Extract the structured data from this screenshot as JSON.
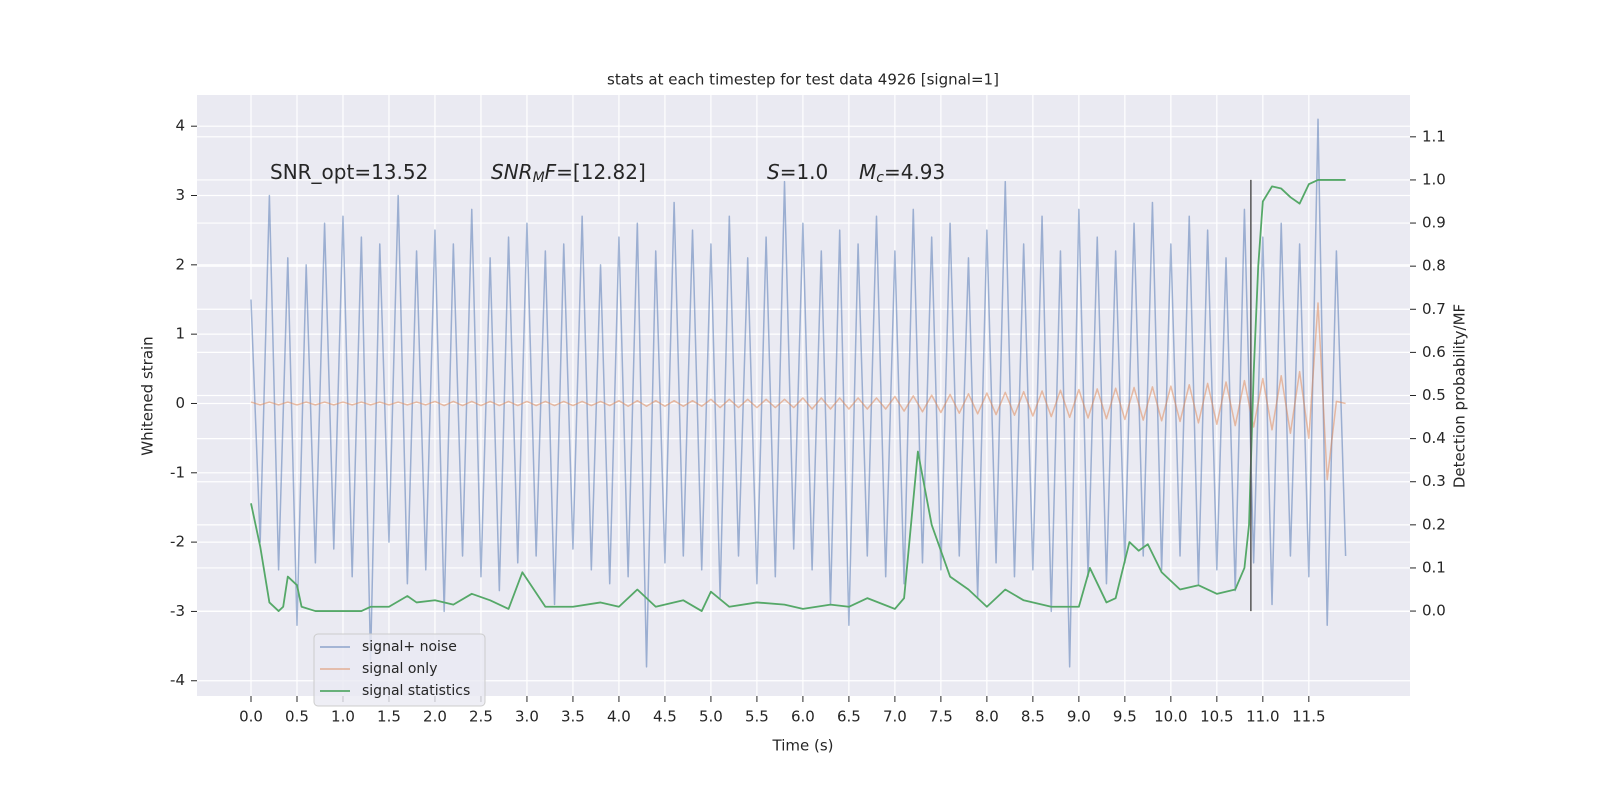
{
  "chart_data": {
    "type": "line",
    "title": "stats at each timestep for test data 4926 [signal=1]",
    "xlabel": "Time (s)",
    "ylabel": "Whitened strain",
    "y2label": "Detection probability/MF",
    "annotations": [
      [
        "SNR_opt=13.52"
      ],
      [
        "SNR",
        "M",
        "F",
        "=[12.82]"
      ],
      [
        "S",
        "=1.0"
      ],
      [
        "M",
        "c",
        "=4.93"
      ]
    ],
    "xlim": [
      -0.587,
      12.6
    ],
    "ylim": [
      -4.22,
      4.45
    ],
    "y2lim": [
      -0.197,
      1.197
    ],
    "xticks": [
      {
        "value": 0,
        "label": "0.0"
      },
      0.5,
      {
        "value": 1,
        "label": "1.0"
      },
      1.5,
      {
        "value": 2,
        "label": "2.0"
      },
      2.5,
      {
        "value": 3,
        "label": "3.0"
      },
      3.5,
      {
        "value": 4,
        "label": "4.0"
      },
      4.5,
      {
        "value": 5,
        "label": "5.0"
      },
      5.5,
      {
        "value": 6,
        "label": "6.0"
      },
      6.5,
      {
        "value": 7,
        "label": "7.0"
      },
      7.5,
      {
        "value": 8,
        "label": "8.0"
      },
      8.5,
      {
        "value": 9,
        "label": "9.0"
      },
      9.5,
      {
        "value": 10,
        "label": "10.0"
      },
      10.5,
      {
        "value": 11,
        "label": "11.0"
      },
      11.5
    ],
    "yticks": [
      -4,
      -3,
      -2,
      -1,
      0,
      1,
      2,
      3,
      4
    ],
    "y2ticks": [
      {
        "value": 0,
        "label": "0.0"
      },
      0.1,
      0.2,
      0.3,
      0.4,
      0.5,
      0.6,
      0.7,
      0.8,
      0.9,
      {
        "value": 1,
        "label": "1.0"
      },
      1.1
    ],
    "grid": true,
    "legend": "lower left",
    "x": [
      0,
      0.1,
      0.2,
      0.3,
      0.4,
      0.5,
      0.6,
      0.7,
      0.8,
      0.9,
      1,
      1.1,
      1.2,
      1.3,
      1.4,
      1.5,
      1.6,
      1.7,
      1.8,
      1.9,
      2,
      2.1,
      2.2,
      2.3,
      2.4,
      2.5,
      2.6,
      2.7,
      2.8,
      2.9,
      3,
      3.1,
      3.2,
      3.3,
      3.4,
      3.5,
      3.6,
      3.7,
      3.8,
      3.9,
      4,
      4.1,
      4.2,
      4.3,
      4.4,
      4.5,
      4.6,
      4.7,
      4.8,
      4.9,
      5,
      5.1,
      5.2,
      5.3,
      5.4,
      5.5,
      5.6,
      5.7,
      5.8,
      5.9,
      6,
      6.1,
      6.2,
      6.3,
      6.4,
      6.5,
      6.6,
      6.7,
      6.8,
      6.9,
      7,
      7.1,
      7.2,
      7.3,
      7.4,
      7.5,
      7.6,
      7.7,
      7.8,
      7.9,
      8,
      8.1,
      8.2,
      8.3,
      8.4,
      8.5,
      8.6,
      8.7,
      8.8,
      8.9,
      9,
      9.1,
      9.2,
      9.3,
      9.4,
      9.5,
      9.6,
      9.7,
      9.8,
      9.9,
      10,
      10.1,
      10.2,
      10.3,
      10.4,
      10.5,
      10.6,
      10.7,
      10.8,
      10.9,
      11,
      11.1,
      11.2,
      11.3,
      11.4,
      11.5,
      11.6,
      11.7,
      11.8,
      11.9
    ],
    "series": [
      {
        "name": "signal+ noise",
        "color": "#4c72b0",
        "values": [
          1.5,
          -2.0,
          3.0,
          -2.4,
          2.1,
          -3.2,
          2.0,
          -2.3,
          2.6,
          -2.1,
          2.7,
          -2.5,
          2.4,
          -3.7,
          2.3,
          -2.0,
          3.0,
          -2.6,
          2.2,
          -2.4,
          2.5,
          -3.0,
          2.3,
          -2.2,
          2.8,
          -2.5,
          2.1,
          -2.7,
          2.4,
          -2.3,
          2.6,
          -2.2,
          2.2,
          -2.9,
          2.3,
          -2.1,
          2.7,
          -2.4,
          2.0,
          -2.6,
          2.4,
          -2.5,
          2.6,
          -3.8,
          2.2,
          -2.3,
          2.9,
          -2.2,
          2.5,
          -2.4,
          2.3,
          -2.8,
          2.7,
          -2.2,
          2.1,
          -2.6,
          2.4,
          -2.5,
          3.2,
          -2.1,
          2.6,
          -2.4,
          2.2,
          -2.9,
          2.5,
          -3.2,
          2.3,
          -2.2,
          2.7,
          -2.5,
          2.2,
          -2.6,
          2.8,
          -2.3,
          2.4,
          -2.4,
          2.6,
          -2.2,
          2.1,
          -2.8,
          2.5,
          -2.3,
          3.2,
          -2.5,
          2.3,
          -2.4,
          2.7,
          -3.0,
          2.2,
          -3.8,
          2.8,
          -2.5,
          2.4,
          -2.6,
          2.2,
          -2.3,
          2.6,
          -2.2,
          2.9,
          -2.4,
          2.3,
          -2.2,
          2.7,
          -2.6,
          2.5,
          -2.4,
          2.1,
          -2.7,
          2.8,
          -2.3,
          2.4,
          -2.9,
          2.6,
          -2.2,
          2.3,
          -2.5,
          4.1,
          -3.2,
          2.2,
          -2.2
        ]
      },
      {
        "name": "signal only",
        "color": "#dd8452",
        "values": [
          0.02,
          -0.02,
          0.02,
          -0.02,
          0.02,
          -0.02,
          0.02,
          -0.02,
          0.02,
          -0.02,
          0.02,
          -0.02,
          0.02,
          -0.02,
          0.02,
          -0.02,
          0.02,
          -0.02,
          0.02,
          -0.02,
          0.03,
          -0.03,
          0.03,
          -0.03,
          0.03,
          -0.03,
          0.03,
          -0.03,
          0.03,
          -0.03,
          0.03,
          -0.03,
          0.03,
          -0.03,
          0.03,
          -0.03,
          0.03,
          -0.03,
          0.03,
          -0.03,
          0.04,
          -0.04,
          0.04,
          -0.04,
          0.04,
          -0.04,
          0.04,
          -0.04,
          0.04,
          -0.04,
          0.06,
          -0.06,
          0.06,
          -0.06,
          0.06,
          -0.06,
          0.06,
          -0.06,
          0.06,
          -0.06,
          0.08,
          -0.08,
          0.08,
          -0.08,
          0.08,
          -0.08,
          0.08,
          -0.08,
          0.08,
          -0.08,
          0.1,
          -0.11,
          0.11,
          -0.12,
          0.12,
          -0.13,
          0.13,
          -0.14,
          0.14,
          -0.15,
          0.15,
          -0.16,
          0.16,
          -0.17,
          0.17,
          -0.18,
          0.18,
          -0.19,
          0.19,
          -0.2,
          0.2,
          -0.21,
          0.21,
          -0.22,
          0.22,
          -0.23,
          0.23,
          -0.24,
          0.24,
          -0.25,
          0.25,
          -0.26,
          0.27,
          -0.28,
          0.29,
          -0.3,
          0.31,
          -0.32,
          0.33,
          -0.34,
          0.36,
          -0.38,
          0.4,
          -0.43,
          0.46,
          -0.5,
          1.45,
          -1.1,
          0.03,
          0
        ]
      },
      {
        "name": "signal statistics",
        "color": "#55a868",
        "axis": "y2",
        "x": [
          0,
          0.1,
          0.2,
          0.3,
          0.35,
          0.4,
          0.5,
          0.55,
          0.7,
          1.0,
          1.2,
          1.3,
          1.5,
          1.7,
          1.8,
          2.0,
          2.2,
          2.4,
          2.6,
          2.8,
          2.95,
          3.2,
          3.5,
          3.8,
          4.0,
          4.2,
          4.4,
          4.7,
          4.9,
          5.0,
          5.2,
          5.5,
          5.8,
          6.0,
          6.3,
          6.5,
          6.7,
          7.0,
          7.1,
          7.25,
          7.4,
          7.6,
          7.8,
          8.0,
          8.2,
          8.4,
          8.7,
          9.0,
          9.12,
          9.3,
          9.4,
          9.55,
          9.65,
          9.75,
          9.9,
          10.1,
          10.3,
          10.5,
          10.7,
          10.8,
          10.85,
          10.9,
          10.95,
          11.0,
          11.1,
          11.2,
          11.3,
          11.4,
          11.5,
          11.6,
          11.7,
          11.9
        ],
        "values": [
          0.25,
          0.15,
          0.02,
          0.0,
          0.01,
          0.08,
          0.06,
          0.01,
          0.0,
          0.0,
          0.0,
          0.01,
          0.01,
          0.035,
          0.02,
          0.025,
          0.015,
          0.04,
          0.025,
          0.005,
          0.09,
          0.01,
          0.01,
          0.02,
          0.01,
          0.05,
          0.01,
          0.025,
          0.0,
          0.045,
          0.01,
          0.02,
          0.015,
          0.005,
          0.015,
          0.01,
          0.03,
          0.005,
          0.03,
          0.37,
          0.2,
          0.08,
          0.05,
          0.01,
          0.05,
          0.025,
          0.01,
          0.01,
          0.1,
          0.02,
          0.03,
          0.16,
          0.14,
          0.155,
          0.09,
          0.05,
          0.06,
          0.04,
          0.05,
          0.1,
          0.2,
          0.55,
          0.8,
          0.95,
          0.985,
          0.98,
          0.96,
          0.945,
          0.99,
          1.0,
          1.0,
          1.0
        ]
      }
    ],
    "marker_line": {
      "x": 10.87,
      "y2": [
        0,
        1
      ],
      "color": "#555555"
    }
  }
}
